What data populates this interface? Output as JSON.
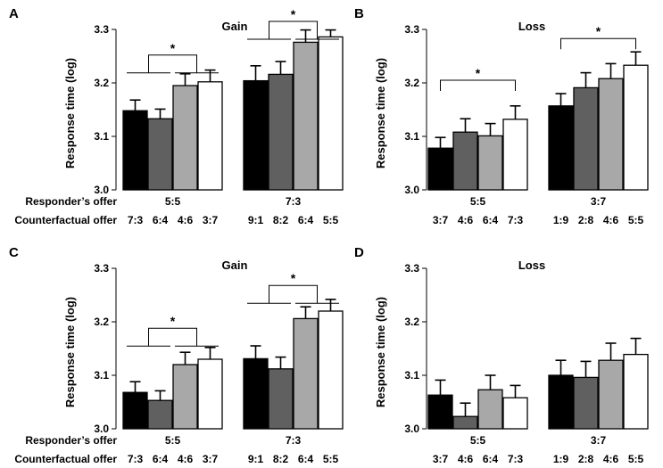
{
  "row_labels": {
    "responder": "Responder’s offer",
    "counterfactual": "Counterfactual offer"
  },
  "colors": [
    "#000000",
    "#606060",
    "#a8a8a8",
    "#ffffff"
  ],
  "chart_data": [
    {
      "panel": "A",
      "type": "bar",
      "title": "Gain",
      "ylabel": "Response time (log)",
      "ylim": [
        3.0,
        3.3
      ],
      "yticks": [
        "3.0",
        "3.1",
        "3.2",
        "3.3"
      ],
      "groups": [
        {
          "responder_offer": "5:5",
          "categories": [
            "7:3",
            "6:4",
            "4:6",
            "3:7"
          ],
          "values": [
            3.148,
            3.133,
            3.195,
            3.202
          ],
          "errors": [
            0.02,
            0.018,
            0.022,
            0.022
          ]
        },
        {
          "responder_offer": "7:3",
          "categories": [
            "9:1",
            "8:2",
            "6:4",
            "5:5"
          ],
          "values": [
            3.204,
            3.216,
            3.276,
            3.286
          ],
          "errors": [
            0.028,
            0.024,
            0.023,
            0.013
          ]
        }
      ],
      "significance": [
        "*",
        "*"
      ]
    },
    {
      "panel": "B",
      "type": "bar",
      "title": "Loss",
      "ylabel": "Response time (log)",
      "ylim": [
        3.0,
        3.3
      ],
      "yticks": [
        "3.0",
        "3.1",
        "3.2",
        "3.3"
      ],
      "groups": [
        {
          "responder_offer": "5:5",
          "categories": [
            "3:7",
            "4:6",
            "6:4",
            "7:3"
          ],
          "values": [
            3.078,
            3.108,
            3.101,
            3.132
          ],
          "errors": [
            0.02,
            0.025,
            0.023,
            0.025
          ]
        },
        {
          "responder_offer": "3:7",
          "categories": [
            "1:9",
            "2:8",
            "4:6",
            "5:5"
          ],
          "values": [
            3.157,
            3.191,
            3.208,
            3.233
          ],
          "errors": [
            0.023,
            0.028,
            0.028,
            0.025
          ]
        }
      ],
      "significance": [
        "*",
        "*"
      ]
    },
    {
      "panel": "C",
      "type": "bar",
      "title": "Gain",
      "ylabel": "Response time (log)",
      "ylim": [
        3.0,
        3.3
      ],
      "yticks": [
        "3.0",
        "3.1",
        "3.2",
        "3.3"
      ],
      "groups": [
        {
          "responder_offer": "5:5",
          "categories": [
            "7:3",
            "6:4",
            "4:6",
            "3:7"
          ],
          "values": [
            3.068,
            3.053,
            3.12,
            3.13
          ],
          "errors": [
            0.02,
            0.018,
            0.023,
            0.022
          ]
        },
        {
          "responder_offer": "7:3",
          "categories": [
            "9:1",
            "8:2",
            "6:4",
            "5:5"
          ],
          "values": [
            3.131,
            3.112,
            3.206,
            3.22
          ],
          "errors": [
            0.024,
            0.022,
            0.022,
            0.022
          ]
        }
      ],
      "significance": [
        "*",
        "*"
      ]
    },
    {
      "panel": "D",
      "type": "bar",
      "title": "Loss",
      "ylabel": "Response time (log)",
      "ylim": [
        3.0,
        3.3
      ],
      "yticks": [
        "3.0",
        "3.1",
        "3.2",
        "3.3"
      ],
      "groups": [
        {
          "responder_offer": "5:5",
          "categories": [
            "3:7",
            "4:6",
            "6:4",
            "7:3"
          ],
          "values": [
            3.063,
            3.023,
            3.073,
            3.058
          ],
          "errors": [
            0.028,
            0.025,
            0.027,
            0.023
          ]
        },
        {
          "responder_offer": "3:7",
          "categories": [
            "1:9",
            "2:8",
            "4:6",
            "5:5"
          ],
          "values": [
            3.1,
            3.096,
            3.128,
            3.139
          ],
          "errors": [
            0.028,
            0.03,
            0.032,
            0.03
          ]
        }
      ],
      "significance": []
    }
  ]
}
